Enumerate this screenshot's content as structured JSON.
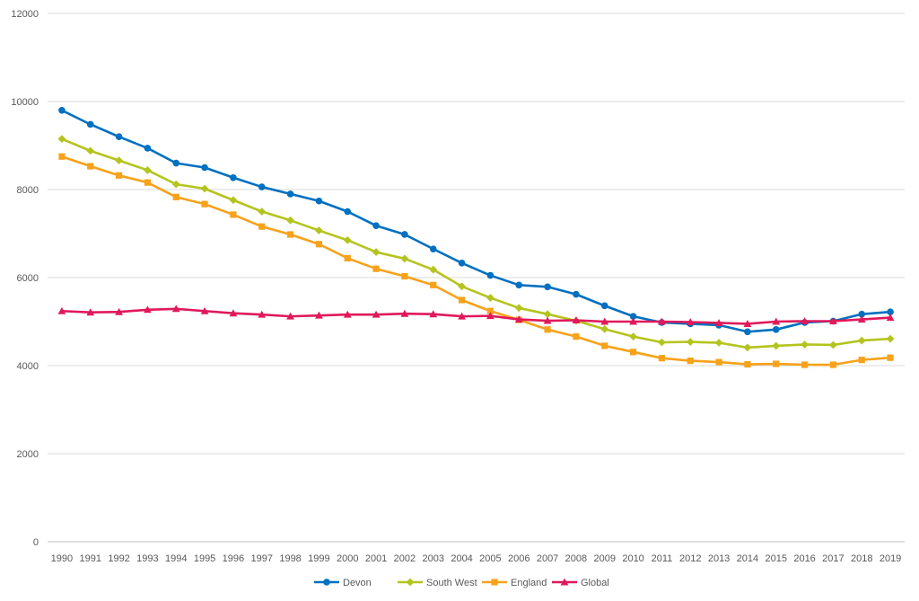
{
  "chart_data": {
    "type": "line",
    "title": "",
    "xlabel": "",
    "ylabel": "",
    "ylim": [
      0,
      12000
    ],
    "yticks": [
      0,
      2000,
      4000,
      6000,
      8000,
      10000,
      12000
    ],
    "grid": true,
    "legend_position": "bottom",
    "x": [
      "1990",
      "1991",
      "1992",
      "1993",
      "1994",
      "1995",
      "1996",
      "1997",
      "1998",
      "1999",
      "2000",
      "2001",
      "2002",
      "2003",
      "2004",
      "2005",
      "2006",
      "2007",
      "2008",
      "2009",
      "2010",
      "2011",
      "2012",
      "2013",
      "2014",
      "2015",
      "2016",
      "2017",
      "2018",
      "2019"
    ],
    "series": [
      {
        "name": "Devon",
        "color": "#0070C0",
        "marker": "circle",
        "values": [
          9800,
          9480,
          9200,
          8940,
          8600,
          8500,
          8270,
          8060,
          7900,
          7740,
          7500,
          7180,
          6980,
          6650,
          6330,
          6050,
          5830,
          5790,
          5620,
          5360,
          5120,
          4980,
          4950,
          4920,
          4770,
          4820,
          4980,
          5010,
          5170,
          5220
        ]
      },
      {
        "name": "South West",
        "color": "#B4C41E",
        "marker": "diamond",
        "values": [
          9150,
          8880,
          8660,
          8440,
          8120,
          8020,
          7760,
          7500,
          7300,
          7070,
          6850,
          6580,
          6430,
          6180,
          5800,
          5540,
          5310,
          5170,
          5020,
          4830,
          4660,
          4530,
          4540,
          4520,
          4410,
          4450,
          4480,
          4470,
          4570,
          4610
        ]
      },
      {
        "name": "England",
        "color": "#F7A21B",
        "marker": "square",
        "values": [
          8750,
          8530,
          8320,
          8160,
          7830,
          7670,
          7430,
          7160,
          6980,
          6760,
          6440,
          6200,
          6030,
          5830,
          5490,
          5240,
          5040,
          4820,
          4660,
          4450,
          4310,
          4170,
          4110,
          4080,
          4030,
          4040,
          4020,
          4020,
          4130,
          4180
        ]
      },
      {
        "name": "Global",
        "color": "#E0195A",
        "marker": "triangle",
        "values": [
          5240,
          5210,
          5220,
          5270,
          5290,
          5240,
          5190,
          5160,
          5120,
          5140,
          5160,
          5160,
          5180,
          5170,
          5120,
          5130,
          5050,
          5020,
          5030,
          5000,
          5000,
          5000,
          4990,
          4970,
          4950,
          5000,
          5010,
          5010,
          5050,
          5090
        ]
      }
    ]
  }
}
